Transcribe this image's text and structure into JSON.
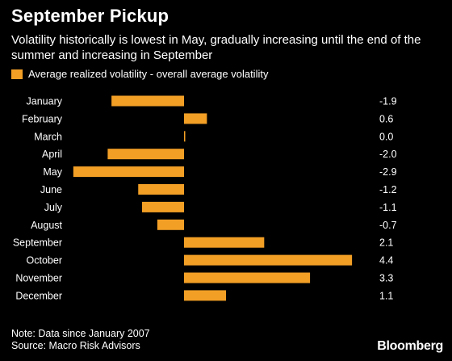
{
  "title": "September Pickup",
  "subtitle": "Volatility historically is lowest in May, gradually increasing until the end of the summer and increasing in September",
  "legend_label": "Average realized volatility - overall average volatility",
  "note": "Note: Data since January 2007",
  "source": "Source: Macro Risk Advisors",
  "brand": "Bloomberg",
  "colors": {
    "bar": "#F29F26",
    "background": "#000000",
    "text": "#FFFFFF"
  },
  "chart_data": {
    "type": "bar",
    "orientation": "horizontal",
    "categories": [
      "January",
      "February",
      "March",
      "April",
      "May",
      "June",
      "July",
      "August",
      "September",
      "October",
      "November",
      "December"
    ],
    "values": [
      -1.9,
      0.6,
      0.0,
      -2.0,
      -2.9,
      -1.2,
      -1.1,
      -0.7,
      2.1,
      4.4,
      3.3,
      1.1
    ],
    "value_labels": [
      "-1.9",
      "0.6",
      "0.0",
      "-2.0",
      "-2.9",
      "-1.2",
      "-1.1",
      "-0.7",
      "2.1",
      "4.4",
      "3.3",
      "1.1"
    ],
    "series": [
      {
        "name": "Average realized volatility - overall average volatility",
        "values": [
          -1.9,
          0.6,
          0.0,
          -2.0,
          -2.9,
          -1.2,
          -1.1,
          -0.7,
          2.1,
          4.4,
          3.3,
          1.1
        ]
      }
    ],
    "xlim": [
      -2.9,
      4.4
    ],
    "grid": false,
    "legend_position": "top-left"
  }
}
